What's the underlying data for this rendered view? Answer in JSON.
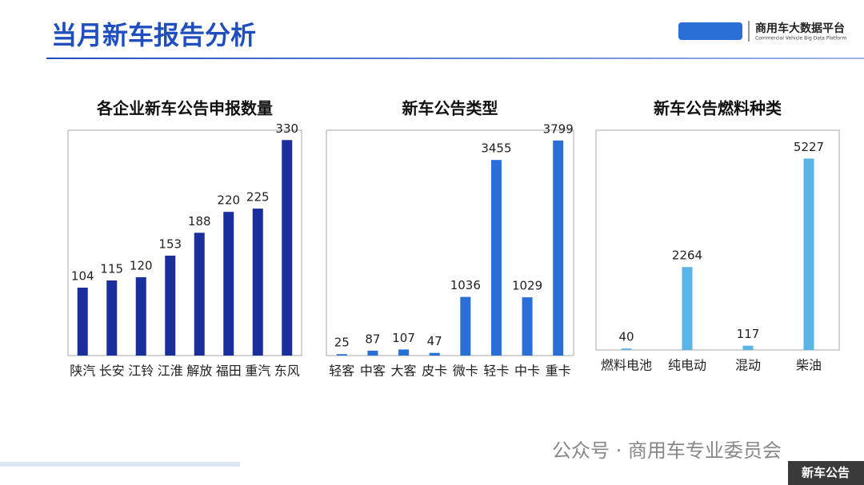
{
  "page": {
    "title": "当月新车报告分析",
    "logo": "商用车大数据平台",
    "logo_sub": "Commercial Vehicle Big Data Platform",
    "watermark": "公众号 · 商用车专业委员会",
    "tag": "新车公告"
  },
  "chart_data": [
    {
      "type": "bar",
      "title": "各企业新车公告申报数量",
      "categories": [
        "陕汽",
        "长安",
        "江铃",
        "江淮",
        "解放",
        "福田",
        "重汽",
        "东风"
      ],
      "values": [
        104,
        115,
        120,
        153,
        188,
        220,
        225,
        330
      ],
      "color": "#1a2f9c",
      "ylim": [
        0,
        345
      ]
    },
    {
      "type": "bar",
      "title": "新车公告类型",
      "categories": [
        "轻客",
        "中客",
        "大客",
        "皮卡",
        "微卡",
        "轻卡",
        "中卡",
        "重卡"
      ],
      "values": [
        25,
        87,
        107,
        47,
        1036,
        3455,
        1029,
        3799
      ],
      "color": "#2a6fd6",
      "ylim": [
        0,
        3980
      ]
    },
    {
      "type": "bar",
      "title": "新车公告燃料种类",
      "categories": [
        "燃料电池",
        "纯电动",
        "混动",
        "柴油"
      ],
      "values": [
        40,
        2264,
        117,
        5227
      ],
      "color": "#5ab4e5",
      "ylim": [
        0,
        6000
      ]
    }
  ]
}
